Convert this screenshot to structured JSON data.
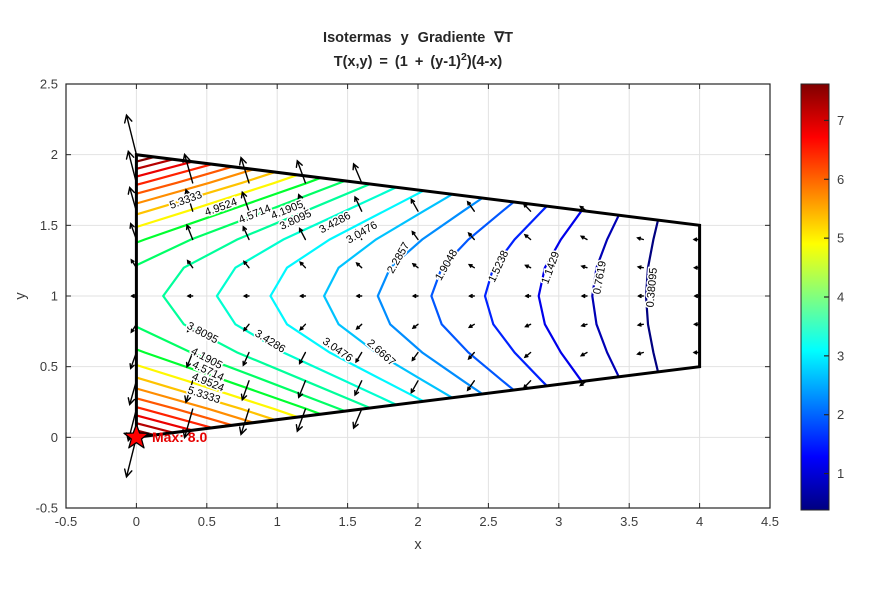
{
  "title": {
    "line1": "Isotermas y Gradiente ∇T",
    "formula_prefix": "T(x,y) = (1 + (y-1)",
    "formula_sup": "2",
    "formula_suffix": ")(4-x)"
  },
  "axes": {
    "xlabel": "x",
    "ylabel": "y",
    "x_tick_labels": [
      "-0.5",
      "0",
      "0.5",
      "1",
      "1.5",
      "2",
      "2.5",
      "3",
      "3.5",
      "4",
      "4.5"
    ],
    "y_tick_labels": [
      "-0.5",
      "0",
      "0.5",
      "1",
      "1.5",
      "2",
      "2.5"
    ]
  },
  "colorbar": {
    "tick_labels": [
      "1",
      "2",
      "3",
      "4",
      "5",
      "6",
      "7"
    ],
    "min": 0.38095,
    "max": 7.61905,
    "gradient_colors": [
      "#000080",
      "#0000ff",
      "#00ffff",
      "#ffff00",
      "#ff0000",
      "#800000"
    ],
    "gradient_positions": [
      0,
      0.125,
      0.375,
      0.625,
      0.875,
      1
    ]
  },
  "chart_data": {
    "type": "contour",
    "title": "Isotermas y Gradiente ∇T",
    "subtitle": "T(x,y) = (1 + (y-1)^2)(4-x)",
    "xlabel": "x",
    "ylabel": "y",
    "xlim": [
      -0.5,
      4.5
    ],
    "ylim": [
      -0.5,
      2.5
    ],
    "grid": true,
    "legend_position": "colorbar-right",
    "domain_vertices": [
      [
        0,
        0
      ],
      [
        4,
        0.5
      ],
      [
        4,
        1.5
      ],
      [
        0,
        2
      ]
    ],
    "levels": [
      {
        "value": 0.38095,
        "color": "#000080"
      },
      {
        "value": 0.7619,
        "color": "#0000b5"
      },
      {
        "value": 1.14286,
        "color": "#0000eb"
      },
      {
        "value": 1.52381,
        "color": "#0022ff"
      },
      {
        "value": 1.90476,
        "color": "#0057ff"
      },
      {
        "value": 2.28571,
        "color": "#008dff"
      },
      {
        "value": 2.66667,
        "color": "#00c3ff"
      },
      {
        "value": 3.04762,
        "color": "#00f8ff"
      },
      {
        "value": 3.42857,
        "color": "#00ffd0"
      },
      {
        "value": 3.80952,
        "color": "#00ff9a"
      },
      {
        "value": 4.19048,
        "color": "#00ff65"
      },
      {
        "value": 4.57143,
        "color": "#00ff2f"
      },
      {
        "value": 4.95238,
        "color": "#fff800"
      },
      {
        "value": 5.33333,
        "color": "#ffc300"
      },
      {
        "value": 5.71429,
        "color": "#ff8d00"
      },
      {
        "value": 6.09524,
        "color": "#ff5700"
      },
      {
        "value": 6.47619,
        "color": "#ff2200"
      },
      {
        "value": 6.85714,
        "color": "#eb0000"
      },
      {
        "value": 7.2381,
        "color": "#b50000"
      },
      {
        "value": 7.61905,
        "color": "#800000"
      }
    ],
    "contour_labels": [
      {
        "text": "5.3333",
        "x": 0.35,
        "y": 1.68,
        "rot": -20
      },
      {
        "text": "4.9524",
        "x": 0.6,
        "y": 1.63,
        "rot": -20
      },
      {
        "text": "4.5714",
        "x": 0.84,
        "y": 1.58,
        "rot": -22
      },
      {
        "text": "4.1905",
        "x": 1.07,
        "y": 1.61,
        "rot": -22
      },
      {
        "text": "3.8095",
        "x": 1.13,
        "y": 1.54,
        "rot": -25
      },
      {
        "text": "3.4286",
        "x": 1.41,
        "y": 1.52,
        "rot": -28
      },
      {
        "text": "3.0476",
        "x": 1.6,
        "y": 1.45,
        "rot": -30
      },
      {
        "text": "2.2857",
        "x": 1.86,
        "y": 1.27,
        "rot": -60
      },
      {
        "text": "1.9048",
        "x": 2.2,
        "y": 1.22,
        "rot": -60
      },
      {
        "text": "1.5238",
        "x": 2.57,
        "y": 1.21,
        "rot": -65
      },
      {
        "text": "1.1429",
        "x": 2.94,
        "y": 1.2,
        "rot": -70
      },
      {
        "text": "0.7619",
        "x": 3.29,
        "y": 1.13,
        "rot": -80
      },
      {
        "text": "0.38095",
        "x": 3.66,
        "y": 1.06,
        "rot": -85
      },
      {
        "text": "3.8095",
        "x": 0.47,
        "y": 0.74,
        "rot": 28
      },
      {
        "text": "3.4286",
        "x": 0.95,
        "y": 0.68,
        "rot": 32
      },
      {
        "text": "3.0476",
        "x": 1.43,
        "y": 0.62,
        "rot": 35
      },
      {
        "text": "2.6667",
        "x": 1.74,
        "y": 0.6,
        "rot": 42
      },
      {
        "text": "4.1905",
        "x": 0.5,
        "y": 0.56,
        "rot": 28
      },
      {
        "text": "4.5714",
        "x": 0.51,
        "y": 0.47,
        "rot": 25
      },
      {
        "text": "4.9524",
        "x": 0.51,
        "y": 0.39,
        "rot": 22
      },
      {
        "text": "5.3333",
        "x": 0.48,
        "y": 0.3,
        "rot": 18
      }
    ],
    "quiver": {
      "x_min": 0,
      "x_max": 4,
      "x_step": 0.4,
      "y_min": 0,
      "y_max": 2,
      "y_step": 0.2,
      "scale": 0.035,
      "color": "#000000"
    },
    "max_point": {
      "x": 0,
      "y": 0,
      "value": 8.0,
      "label": "Max: 8.0",
      "marker": "pentagram",
      "marker_color": "#ff0000",
      "marker_edge_color": "#000000",
      "label_color": "#e60000"
    }
  }
}
